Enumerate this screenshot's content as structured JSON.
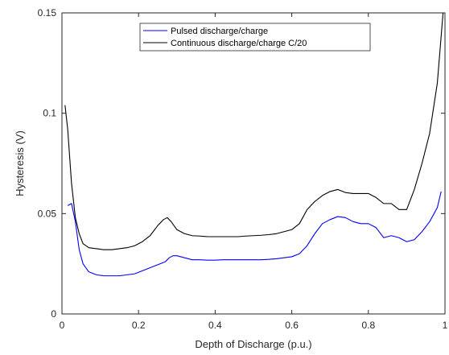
{
  "chart_data": {
    "type": "line",
    "xlabel": "Depth of Discharge (p.u.)",
    "ylabel": "Hysteresis (V)",
    "xlim": [
      0,
      1
    ],
    "ylim": [
      0,
      0.15
    ],
    "x_ticks": [
      "0",
      "0.2",
      "0.4",
      "0.6",
      "0.8",
      "1"
    ],
    "x_tick_values": [
      0,
      0.2,
      0.4,
      0.6,
      0.8,
      1
    ],
    "y_ticks": [
      "0",
      "0.05",
      "0.1",
      "0.15"
    ],
    "y_tick_values": [
      0,
      0.05,
      0.1,
      0.15
    ],
    "grid": false,
    "legend_position": "top-center",
    "series": [
      {
        "name": "Pulsed discharge/charge",
        "color": "#0000ff",
        "x": [
          0.015,
          0.025,
          0.035,
          0.045,
          0.055,
          0.07,
          0.09,
          0.11,
          0.13,
          0.15,
          0.17,
          0.19,
          0.21,
          0.23,
          0.25,
          0.27,
          0.28,
          0.29,
          0.3,
          0.32,
          0.34,
          0.36,
          0.38,
          0.4,
          0.42,
          0.44,
          0.46,
          0.48,
          0.5,
          0.52,
          0.54,
          0.56,
          0.58,
          0.6,
          0.62,
          0.64,
          0.66,
          0.68,
          0.7,
          0.72,
          0.74,
          0.76,
          0.78,
          0.8,
          0.82,
          0.84,
          0.86,
          0.88,
          0.9,
          0.92,
          0.94,
          0.96,
          0.98,
          0.99
        ],
        "y": [
          0.054,
          0.055,
          0.046,
          0.032,
          0.025,
          0.021,
          0.0195,
          0.019,
          0.019,
          0.019,
          0.0195,
          0.02,
          0.0215,
          0.023,
          0.0245,
          0.026,
          0.028,
          0.029,
          0.029,
          0.028,
          0.027,
          0.027,
          0.0268,
          0.0268,
          0.027,
          0.027,
          0.027,
          0.027,
          0.027,
          0.027,
          0.0272,
          0.0275,
          0.028,
          0.0285,
          0.03,
          0.034,
          0.04,
          0.045,
          0.047,
          0.0485,
          0.048,
          0.046,
          0.045,
          0.045,
          0.043,
          0.038,
          0.039,
          0.038,
          0.036,
          0.037,
          0.041,
          0.046,
          0.053,
          0.061
        ]
      },
      {
        "name": "Continuous discharge/charge C/20",
        "color": "#000000",
        "x": [
          0.008,
          0.015,
          0.025,
          0.035,
          0.045,
          0.055,
          0.07,
          0.09,
          0.11,
          0.13,
          0.15,
          0.17,
          0.19,
          0.21,
          0.23,
          0.25,
          0.265,
          0.275,
          0.285,
          0.3,
          0.32,
          0.34,
          0.36,
          0.38,
          0.4,
          0.42,
          0.44,
          0.46,
          0.48,
          0.5,
          0.52,
          0.54,
          0.56,
          0.58,
          0.6,
          0.62,
          0.64,
          0.66,
          0.68,
          0.7,
          0.72,
          0.74,
          0.76,
          0.78,
          0.8,
          0.82,
          0.84,
          0.86,
          0.88,
          0.9,
          0.92,
          0.94,
          0.96,
          0.98,
          0.995
        ],
        "y": [
          0.104,
          0.092,
          0.065,
          0.048,
          0.04,
          0.035,
          0.033,
          0.0325,
          0.032,
          0.032,
          0.0325,
          0.033,
          0.034,
          0.036,
          0.039,
          0.044,
          0.047,
          0.048,
          0.046,
          0.042,
          0.04,
          0.039,
          0.0388,
          0.0385,
          0.0385,
          0.0385,
          0.0385,
          0.0385,
          0.0388,
          0.039,
          0.0392,
          0.0395,
          0.04,
          0.041,
          0.042,
          0.045,
          0.052,
          0.056,
          0.059,
          0.061,
          0.062,
          0.0605,
          0.06,
          0.06,
          0.06,
          0.058,
          0.055,
          0.055,
          0.052,
          0.052,
          0.062,
          0.075,
          0.09,
          0.115,
          0.15
        ]
      }
    ]
  }
}
